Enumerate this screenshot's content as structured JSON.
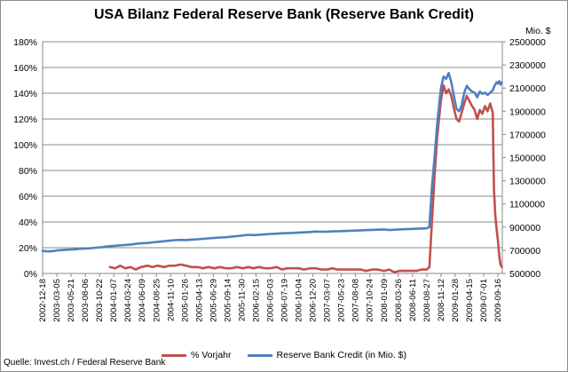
{
  "chart_data": {
    "type": "line",
    "title": "USA Bilanz Federal Reserve Bank (Reserve Bank Credit)",
    "y_left": {
      "ticks": [
        "0%",
        "20%",
        "40%",
        "60%",
        "80%",
        "100%",
        "120%",
        "140%",
        "160%",
        "180%"
      ],
      "range": [
        0,
        180
      ]
    },
    "y_right": {
      "unit_label": "Mio. $",
      "ticks": [
        "500000",
        "700000",
        "900000",
        "1100000",
        "1300000",
        "1500000",
        "1700000",
        "1900000",
        "2100000",
        "2300000",
        "2500000"
      ],
      "range": [
        500000,
        2500000
      ]
    },
    "x_ticks": [
      "2002-12-18",
      "2003-03-05",
      "2003-05-21",
      "2003-08-06",
      "2003-10-22",
      "2004-01-07",
      "2004-03-24",
      "2004-06-09",
      "2004-08-25",
      "2004-11-10",
      "2005-01-26",
      "2005-04-13",
      "2005-06-29",
      "2005-09-14",
      "2005-11-30",
      "2006-02-15",
      "2006-05-03",
      "2006-07-19",
      "2006-10-04",
      "2006-12-20",
      "2007-03-07",
      "2007-05-23",
      "2007-08-08",
      "2007-10-24",
      "2008-01-09",
      "2008-03-26",
      "2008-06-11",
      "2008-08-27",
      "2008-11-12",
      "2009-01-28",
      "2009-04-15",
      "2009-07-01",
      "2009-09-16"
    ],
    "grid": true,
    "legend_position": "bottom",
    "series": [
      {
        "name": "% Vorjahr",
        "axis": "left",
        "color": "#c0504d",
        "points": [
          [
            "2003-12-17",
            5
          ],
          [
            "2004-01-14",
            4
          ],
          [
            "2004-02-11",
            6
          ],
          [
            "2004-03-10",
            4
          ],
          [
            "2004-04-07",
            5
          ],
          [
            "2004-05-05",
            3
          ],
          [
            "2004-06-02",
            5
          ],
          [
            "2004-07-07",
            6
          ],
          [
            "2004-08-04",
            5
          ],
          [
            "2004-09-01",
            6
          ],
          [
            "2004-10-06",
            5
          ],
          [
            "2004-11-03",
            6
          ],
          [
            "2004-12-01",
            6
          ],
          [
            "2005-01-05",
            7
          ],
          [
            "2005-02-02",
            6
          ],
          [
            "2005-03-02",
            5
          ],
          [
            "2005-04-06",
            5
          ],
          [
            "2005-05-04",
            4
          ],
          [
            "2005-06-01",
            5
          ],
          [
            "2005-07-06",
            4
          ],
          [
            "2005-08-03",
            5
          ],
          [
            "2005-09-07",
            4
          ],
          [
            "2005-10-05",
            4
          ],
          [
            "2005-11-02",
            5
          ],
          [
            "2005-12-07",
            4
          ],
          [
            "2006-01-04",
            5
          ],
          [
            "2006-02-01",
            4
          ],
          [
            "2006-03-01",
            5
          ],
          [
            "2006-04-05",
            4
          ],
          [
            "2006-05-03",
            4
          ],
          [
            "2006-06-07",
            5
          ],
          [
            "2006-07-05",
            3
          ],
          [
            "2006-08-02",
            4
          ],
          [
            "2006-09-06",
            4
          ],
          [
            "2006-10-04",
            4
          ],
          [
            "2006-11-01",
            3
          ],
          [
            "2006-12-06",
            4
          ],
          [
            "2007-01-03",
            4
          ],
          [
            "2007-02-07",
            3
          ],
          [
            "2007-03-07",
            3
          ],
          [
            "2007-04-04",
            4
          ],
          [
            "2007-05-02",
            3
          ],
          [
            "2007-06-06",
            3
          ],
          [
            "2007-07-04",
            3
          ],
          [
            "2007-08-08",
            3
          ],
          [
            "2007-09-05",
            3
          ],
          [
            "2007-10-03",
            2
          ],
          [
            "2007-11-07",
            3
          ],
          [
            "2007-12-05",
            3
          ],
          [
            "2008-01-09",
            2
          ],
          [
            "2008-02-06",
            3
          ],
          [
            "2008-03-05",
            1
          ],
          [
            "2008-04-02",
            2
          ],
          [
            "2008-05-07",
            2
          ],
          [
            "2008-06-04",
            2
          ],
          [
            "2008-07-02",
            2
          ],
          [
            "2008-07-30",
            3
          ],
          [
            "2008-08-27",
            3
          ],
          [
            "2008-09-10",
            5
          ],
          [
            "2008-09-24",
            40
          ],
          [
            "2008-10-08",
            75
          ],
          [
            "2008-10-22",
            105
          ],
          [
            "2008-11-05",
            125
          ],
          [
            "2008-11-12",
            135
          ],
          [
            "2008-11-26",
            146
          ],
          [
            "2008-12-10",
            140
          ],
          [
            "2008-12-24",
            143
          ],
          [
            "2009-01-07",
            138
          ],
          [
            "2009-01-21",
            128
          ],
          [
            "2009-02-04",
            120
          ],
          [
            "2009-02-18",
            118
          ],
          [
            "2009-03-04",
            125
          ],
          [
            "2009-03-18",
            132
          ],
          [
            "2009-04-01",
            138
          ],
          [
            "2009-04-15",
            134
          ],
          [
            "2009-04-29",
            130
          ],
          [
            "2009-05-13",
            127
          ],
          [
            "2009-05-27",
            120
          ],
          [
            "2009-06-10",
            127
          ],
          [
            "2009-06-24",
            124
          ],
          [
            "2009-07-08",
            130
          ],
          [
            "2009-07-22",
            126
          ],
          [
            "2009-08-05",
            132
          ],
          [
            "2009-08-19",
            125
          ],
          [
            "2009-08-26",
            65
          ],
          [
            "2009-09-02",
            45
          ],
          [
            "2009-09-09",
            35
          ],
          [
            "2009-09-16",
            26
          ],
          [
            "2009-09-23",
            14
          ],
          [
            "2009-09-30",
            7
          ],
          [
            "2009-10-07",
            5
          ]
        ]
      },
      {
        "name": "Reserve Bank Credit (in Mio. $)",
        "axis": "right",
        "color": "#4f81bd",
        "points": [
          [
            "2002-12-18",
            695000
          ],
          [
            "2003-01-15",
            690000
          ],
          [
            "2003-02-12",
            693000
          ],
          [
            "2003-03-12",
            700000
          ],
          [
            "2003-04-09",
            702000
          ],
          [
            "2003-05-07",
            705000
          ],
          [
            "2003-06-04",
            708000
          ],
          [
            "2003-07-02",
            712000
          ],
          [
            "2003-08-06",
            715000
          ],
          [
            "2003-09-03",
            718000
          ],
          [
            "2003-10-01",
            722000
          ],
          [
            "2003-11-05",
            727000
          ],
          [
            "2003-12-03",
            733000
          ],
          [
            "2004-01-07",
            738000
          ],
          [
            "2004-02-04",
            742000
          ],
          [
            "2004-03-03",
            745000
          ],
          [
            "2004-04-07",
            750000
          ],
          [
            "2004-05-05",
            755000
          ],
          [
            "2004-06-02",
            760000
          ],
          [
            "2004-07-07",
            763000
          ],
          [
            "2004-08-04",
            768000
          ],
          [
            "2004-09-01",
            773000
          ],
          [
            "2004-10-06",
            778000
          ],
          [
            "2004-11-03",
            783000
          ],
          [
            "2004-12-01",
            787000
          ],
          [
            "2005-01-05",
            790000
          ],
          [
            "2005-02-02",
            788000
          ],
          [
            "2005-03-02",
            792000
          ],
          [
            "2005-04-06",
            795000
          ],
          [
            "2005-05-04",
            799000
          ],
          [
            "2005-06-01",
            803000
          ],
          [
            "2005-07-06",
            807000
          ],
          [
            "2005-08-03",
            810000
          ],
          [
            "2005-09-07",
            813000
          ],
          [
            "2005-10-05",
            817000
          ],
          [
            "2005-11-02",
            822000
          ],
          [
            "2005-12-07",
            828000
          ],
          [
            "2006-01-04",
            833000
          ],
          [
            "2006-02-01",
            831000
          ],
          [
            "2006-03-01",
            834000
          ],
          [
            "2006-04-05",
            838000
          ],
          [
            "2006-05-03",
            841000
          ],
          [
            "2006-06-07",
            843000
          ],
          [
            "2006-07-05",
            846000
          ],
          [
            "2006-08-02",
            848000
          ],
          [
            "2006-09-06",
            850000
          ],
          [
            "2006-10-04",
            853000
          ],
          [
            "2006-11-01",
            855000
          ],
          [
            "2006-12-06",
            858000
          ],
          [
            "2007-01-03",
            862000
          ],
          [
            "2007-02-07",
            860000
          ],
          [
            "2007-03-07",
            861000
          ],
          [
            "2007-04-04",
            863000
          ],
          [
            "2007-05-02",
            864000
          ],
          [
            "2007-06-06",
            866000
          ],
          [
            "2007-07-04",
            868000
          ],
          [
            "2007-08-08",
            870000
          ],
          [
            "2007-09-05",
            872000
          ],
          [
            "2007-10-03",
            874000
          ],
          [
            "2007-11-07",
            876000
          ],
          [
            "2007-12-05",
            878000
          ],
          [
            "2008-01-09",
            880000
          ],
          [
            "2008-02-06",
            875000
          ],
          [
            "2008-03-05",
            878000
          ],
          [
            "2008-04-02",
            880000
          ],
          [
            "2008-05-07",
            882000
          ],
          [
            "2008-06-04",
            884000
          ],
          [
            "2008-07-02",
            886000
          ],
          [
            "2008-07-30",
            888000
          ],
          [
            "2008-08-27",
            890000
          ],
          [
            "2008-09-10",
            900000
          ],
          [
            "2008-09-24",
            1250000
          ],
          [
            "2008-10-08",
            1500000
          ],
          [
            "2008-10-22",
            1780000
          ],
          [
            "2008-11-05",
            2000000
          ],
          [
            "2008-11-12",
            2100000
          ],
          [
            "2008-11-26",
            2200000
          ],
          [
            "2008-12-10",
            2180000
          ],
          [
            "2008-12-24",
            2230000
          ],
          [
            "2009-01-07",
            2150000
          ],
          [
            "2009-01-21",
            2030000
          ],
          [
            "2009-02-04",
            1920000
          ],
          [
            "2009-02-18",
            1900000
          ],
          [
            "2009-03-04",
            1950000
          ],
          [
            "2009-03-18",
            2060000
          ],
          [
            "2009-04-01",
            2120000
          ],
          [
            "2009-04-15",
            2090000
          ],
          [
            "2009-04-29",
            2070000
          ],
          [
            "2009-05-13",
            2060000
          ],
          [
            "2009-05-27",
            2020000
          ],
          [
            "2009-06-10",
            2070000
          ],
          [
            "2009-06-24",
            2050000
          ],
          [
            "2009-07-08",
            2060000
          ],
          [
            "2009-07-22",
            2040000
          ],
          [
            "2009-08-05",
            2060000
          ],
          [
            "2009-08-19",
            2080000
          ],
          [
            "2009-08-26",
            2110000
          ],
          [
            "2009-09-02",
            2130000
          ],
          [
            "2009-09-09",
            2150000
          ],
          [
            "2009-09-16",
            2140000
          ],
          [
            "2009-09-23",
            2160000
          ],
          [
            "2009-09-30",
            2130000
          ],
          [
            "2009-10-07",
            2150000
          ]
        ]
      }
    ]
  },
  "source_text": "Quelle: Invest.ch / Federal Reserve Bank"
}
